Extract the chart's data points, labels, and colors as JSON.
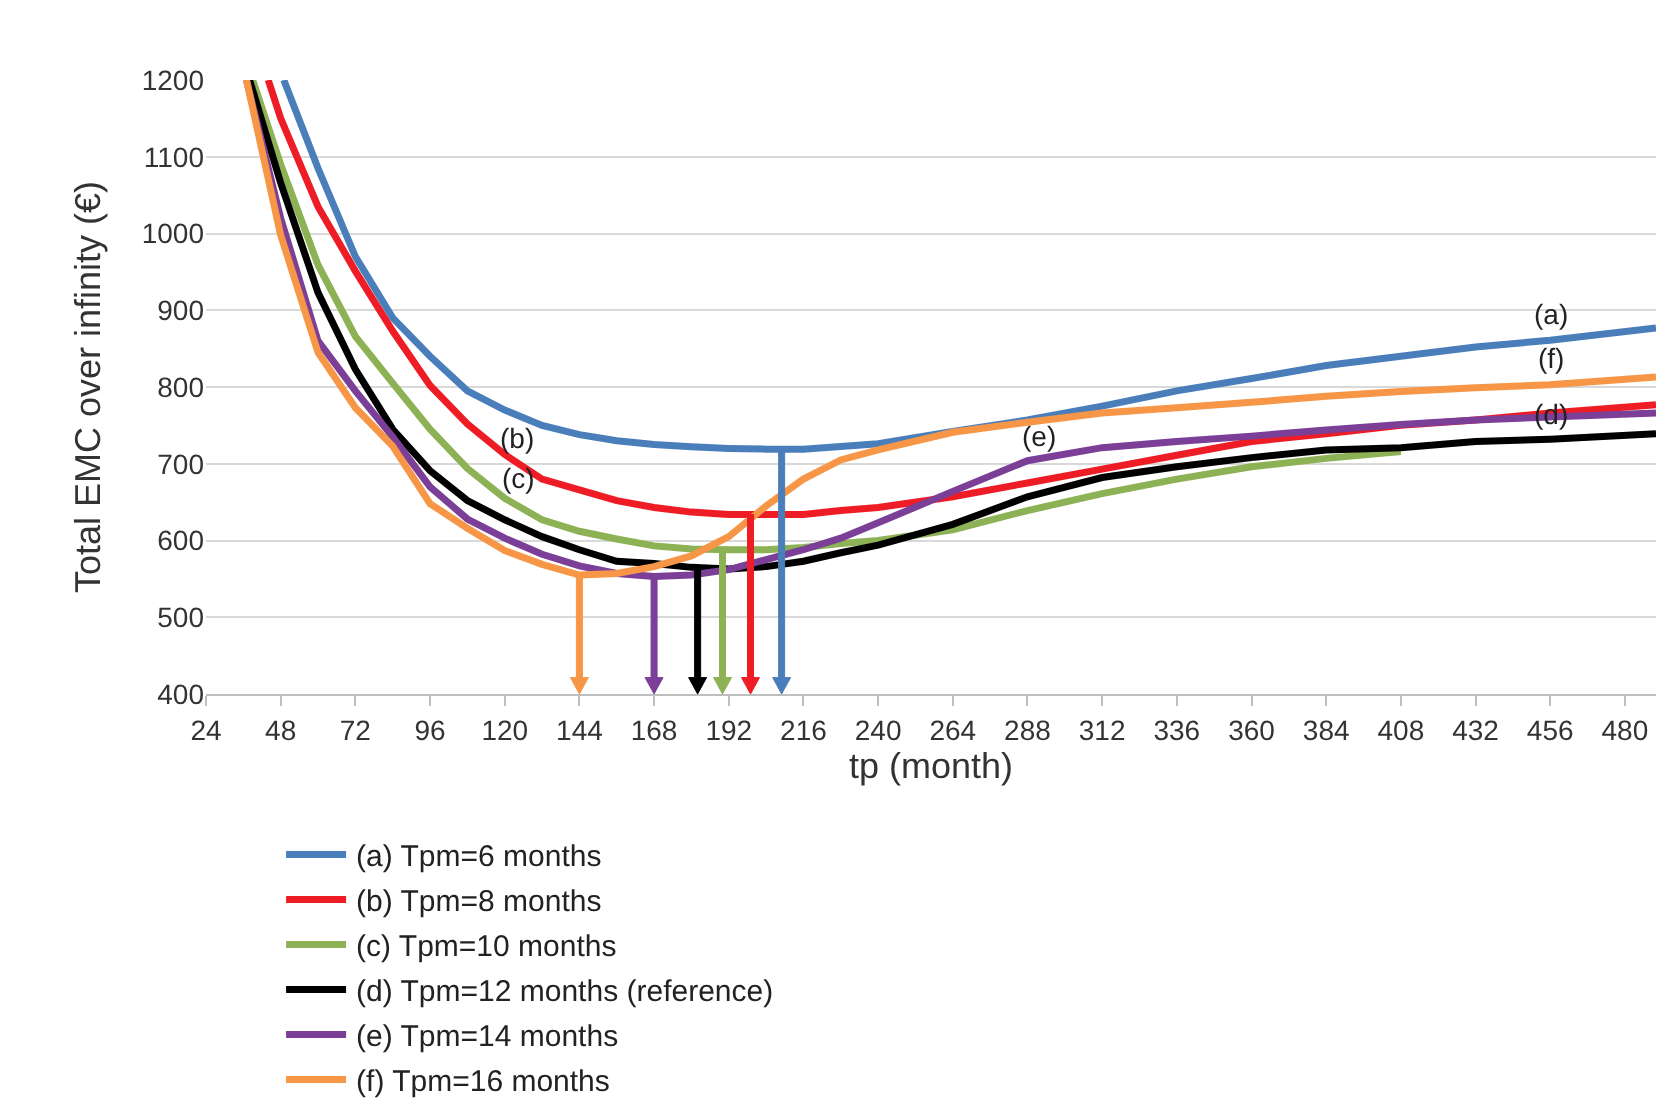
{
  "chart_data": {
    "type": "line",
    "xlabel": "tp (month)",
    "ylabel": "Total EMC over infinity (€)",
    "xlim": [
      24,
      490
    ],
    "xticks": [
      24,
      48,
      72,
      96,
      120,
      144,
      168,
      192,
      216,
      240,
      264,
      288,
      312,
      336,
      360,
      384,
      408,
      432,
      456,
      480
    ],
    "ylim": [
      400,
      1200
    ],
    "yticks": [
      400,
      500,
      600,
      700,
      800,
      900,
      1000,
      1100,
      1200
    ],
    "grid": "y",
    "legend": "bottom",
    "marker": "none",
    "line_style": "solid",
    "series": [
      {
        "name": "(a) Tpm=6 months",
        "color": "#4a7ebb",
        "x": [
          49,
          60,
          72,
          84,
          96,
          108,
          120,
          132,
          144,
          156,
          168,
          180,
          192,
          204,
          216,
          240,
          264,
          288,
          312,
          336,
          360,
          384,
          408,
          432,
          456,
          490
        ],
        "values": [
          1200,
          1085,
          970,
          890,
          840,
          795,
          770,
          750,
          738,
          730,
          725,
          722,
          720,
          719,
          719,
          726,
          742,
          757,
          775,
          795,
          811,
          828,
          840,
          852,
          861,
          877
        ]
      },
      {
        "name": "(b) Tpm=8 months",
        "color": "#ee1c25",
        "x": [
          44,
          48,
          60,
          72,
          84,
          96,
          108,
          120,
          132,
          144,
          156,
          168,
          180,
          192,
          204,
          216,
          228,
          240,
          264,
          288,
          312,
          336,
          360,
          384,
          408,
          432,
          456,
          490
        ],
        "values": [
          1200,
          1150,
          1035,
          951,
          873,
          802,
          752,
          712,
          680,
          666,
          652,
          643,
          637,
          634,
          634,
          634,
          639,
          643,
          657,
          675,
          693,
          711,
          729,
          739,
          750,
          757,
          766,
          777
        ]
      },
      {
        "name": "(c) Tpm=10 months",
        "color": "#8db255",
        "x": [
          39,
          48,
          60,
          72,
          84,
          96,
          108,
          120,
          132,
          144,
          156,
          168,
          180,
          192,
          204,
          216,
          228,
          240,
          264,
          288,
          312,
          336,
          360,
          384,
          408
        ],
        "values": [
          1200,
          1090,
          959,
          866,
          805,
          745,
          694,
          655,
          627,
          612,
          602,
          593,
          589,
          588,
          588,
          591,
          596,
          600,
          614,
          639,
          661,
          680,
          696,
          707,
          716
        ]
      },
      {
        "name": "(d) Tpm=12 months (reference)",
        "color": "#000000",
        "x": [
          38,
          48,
          60,
          72,
          84,
          96,
          108,
          120,
          132,
          144,
          156,
          168,
          180,
          192,
          204,
          216,
          228,
          240,
          264,
          288,
          312,
          336,
          360,
          384,
          408,
          432,
          456,
          490
        ],
        "values": [
          1200,
          1066,
          923,
          823,
          745,
          691,
          652,
          627,
          605,
          588,
          573,
          570,
          565,
          563,
          566,
          573,
          584,
          594,
          621,
          657,
          682,
          696,
          708,
          718,
          721,
          729,
          732,
          739
        ]
      },
      {
        "name": "(e) Tpm=14 months",
        "color": "#7b3f98",
        "x": [
          37,
          48,
          60,
          72,
          84,
          96,
          108,
          120,
          132,
          144,
          156,
          168,
          180,
          192,
          204,
          216,
          228,
          240,
          264,
          288,
          312,
          336,
          360,
          384,
          408,
          432,
          456,
          490
        ],
        "values": [
          1200,
          1020,
          860,
          795,
          735,
          670,
          628,
          603,
          582,
          567,
          557,
          553,
          555,
          562,
          575,
          588,
          603,
          623,
          664,
          704,
          721,
          729,
          736,
          744,
          751,
          757,
          761,
          766
        ]
      },
      {
        "name": "(f) Tpm=16 months",
        "color": "#f79646",
        "x": [
          37,
          48,
          60,
          72,
          84,
          96,
          108,
          120,
          132,
          144,
          156,
          168,
          180,
          192,
          204,
          216,
          228,
          240,
          264,
          288,
          312,
          336,
          360,
          384,
          408,
          432,
          456,
          490
        ],
        "values": [
          1200,
          998,
          845,
          773,
          723,
          648,
          616,
          587,
          569,
          555,
          557,
          566,
          580,
          605,
          645,
          680,
          705,
          718,
          741,
          754,
          766,
          773,
          780,
          788,
          794,
          799,
          803,
          813
        ]
      }
    ],
    "ref_lines": [
      {
        "axis": "x",
        "value": 209,
        "color": "#4a7ebb"
      },
      {
        "axis": "x",
        "value": 199,
        "color": "#ee1c25"
      },
      {
        "axis": "x",
        "value": 190,
        "color": "#8db255"
      },
      {
        "axis": "x",
        "value": 182,
        "color": "#000000"
      },
      {
        "axis": "x",
        "value": 168,
        "color": "#7b3f98"
      },
      {
        "axis": "x",
        "value": 144,
        "color": "#f79646"
      }
    ],
    "annotations": [
      {
        "text": "(a)",
        "x": 456,
        "y": 861
      },
      {
        "text": "(b)",
        "x": 124,
        "y": 700
      },
      {
        "text": "(c)",
        "x": 124,
        "y": 648
      },
      {
        "text": "(d)",
        "x": 456,
        "y": 732
      },
      {
        "text": "(e)",
        "x": 292,
        "y": 701
      },
      {
        "text": "(f)",
        "x": 456,
        "y": 803
      }
    ]
  }
}
